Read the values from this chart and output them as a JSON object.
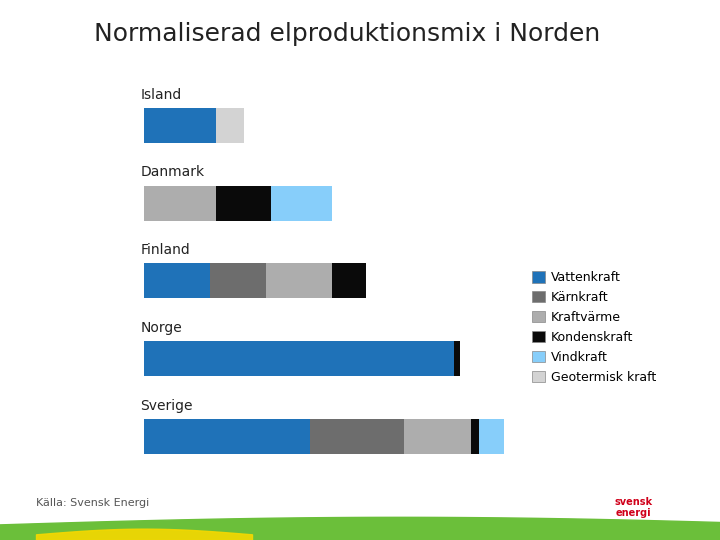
{
  "title": "Normaliserad elproduktionsmix i Norden",
  "source": "Källa: Svensk Energi",
  "countries": [
    "Island",
    "Danmark",
    "Finland",
    "Norge",
    "Sverige"
  ],
  "categories": [
    "Vattenkraft",
    "Kärnkraft",
    "Kraftvärme",
    "Kondenskraft",
    "Vindkraft",
    "Geotermisk kraft"
  ],
  "colors": [
    "#1F72B8",
    "#6D6D6D",
    "#ADADAD",
    "#0A0A0A",
    "#87CEFA",
    "#D3D3D3"
  ],
  "data": {
    "Island": [
      0.13,
      0.0,
      0.0,
      0.0,
      0.0,
      0.05
    ],
    "Danmark": [
      0.0,
      0.0,
      0.13,
      0.1,
      0.11,
      0.0
    ],
    "Finland": [
      0.12,
      0.1,
      0.12,
      0.06,
      0.0,
      0.0
    ],
    "Norge": [
      0.56,
      0.0,
      0.0,
      0.01,
      0.0,
      0.0
    ],
    "Sverige": [
      0.3,
      0.17,
      0.12,
      0.015,
      0.07,
      0.0
    ]
  },
  "xlim": 0.65,
  "background_color": "#FFFFFF",
  "title_fontsize": 18,
  "label_fontsize": 10,
  "legend_fontsize": 9,
  "bar_height": 0.45
}
